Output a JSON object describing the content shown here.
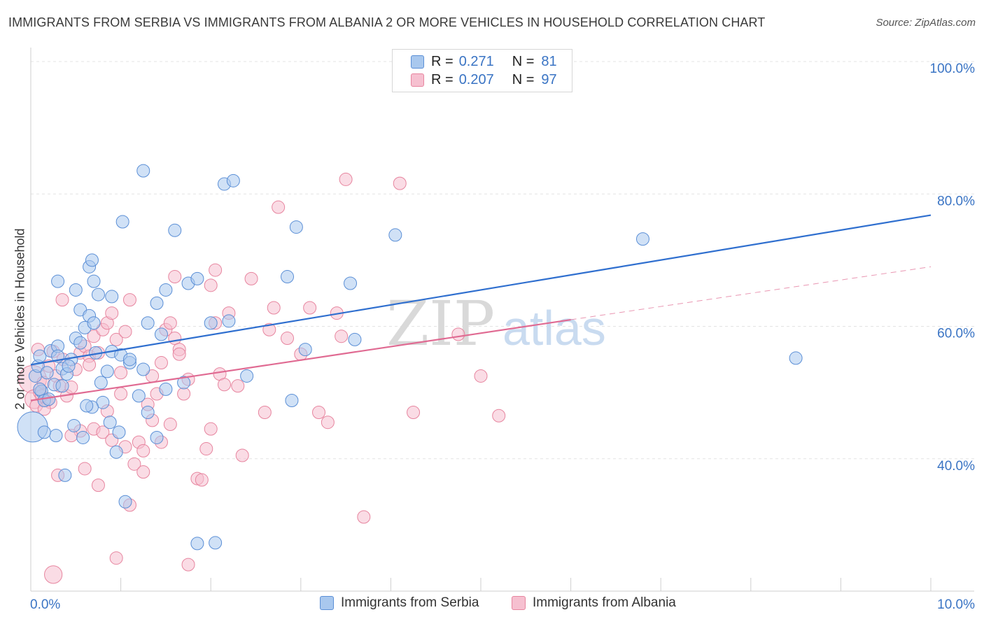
{
  "title": "IMMIGRANTS FROM SERBIA VS IMMIGRANTS FROM ALBANIA 2 OR MORE VEHICLES IN HOUSEHOLD CORRELATION CHART",
  "source": "Source: ZipAtlas.com",
  "watermark": {
    "part1": "ZIP",
    "part2": "atlas"
  },
  "legend": {
    "rows": [
      {
        "r_label": "R =",
        "r_value": "0.271",
        "n_label": "N =",
        "n_value": "81",
        "color": "#9dbfe9"
      },
      {
        "r_label": "R =",
        "r_value": "0.207",
        "n_label": "N =",
        "n_value": "97",
        "color": "#f4b6c8"
      }
    ]
  },
  "bottom_legend": [
    {
      "label": "Immigrants from Serbia",
      "color": "#9dbfe9"
    },
    {
      "label": "Immigrants from Albania",
      "color": "#f4b6c8"
    }
  ],
  "colors": {
    "serbia_fill": "#a9c8ee",
    "serbia_stroke": "#5b8fd6",
    "serbia_line": "#2f6fcf",
    "albania_fill": "#f6c0d0",
    "albania_stroke": "#e7859f",
    "albania_line": "#e06a92",
    "axis_label": "#3a74c4",
    "grid": "#e3e3e3"
  },
  "chart_data": {
    "type": "scatter",
    "title": "IMMIGRANTS FROM SERBIA VS IMMIGRANTS FROM ALBANIA 2 OR MORE VEHICLES IN HOUSEHOLD CORRELATION CHART",
    "xlabel": "",
    "ylabel": "2 or more Vehicles in Household",
    "xlim": [
      0,
      10
    ],
    "ylim": [
      20,
      100
    ],
    "x_tick_labels": [
      "0.0%",
      "10.0%"
    ],
    "y_ticks": [
      40,
      60,
      80,
      100
    ],
    "y_tick_labels": [
      "40.0%",
      "60.0%",
      "80.0%",
      "100.0%"
    ],
    "series": [
      {
        "name": "Immigrants from Serbia",
        "r": 0.271,
        "n": 81,
        "trend": {
          "x": [
            0,
            10
          ],
          "y": [
            54.2,
            76.8
          ],
          "dashed": false
        },
        "points": [
          {
            "x": 0.02,
            "y": 44.8,
            "s": 2.4
          },
          {
            "x": 0.05,
            "y": 52.5,
            "s": 1.0
          },
          {
            "x": 0.08,
            "y": 54.0,
            "s": 1.0
          },
          {
            "x": 0.1,
            "y": 55.5,
            "s": 1.0
          },
          {
            "x": 0.12,
            "y": 50.2,
            "s": 1.0
          },
          {
            "x": 0.15,
            "y": 48.8,
            "s": 1.0
          },
          {
            "x": 0.18,
            "y": 53.0,
            "s": 1.0
          },
          {
            "x": 0.22,
            "y": 56.3,
            "s": 1.0
          },
          {
            "x": 0.26,
            "y": 51.2,
            "s": 1.0
          },
          {
            "x": 0.3,
            "y": 57.0,
            "s": 1.0
          },
          {
            "x": 0.35,
            "y": 53.6,
            "s": 1.0
          },
          {
            "x": 0.4,
            "y": 52.8,
            "s": 1.0
          },
          {
            "x": 0.45,
            "y": 55.0,
            "s": 1.0
          },
          {
            "x": 0.5,
            "y": 58.2,
            "s": 1.0
          },
          {
            "x": 0.55,
            "y": 62.5,
            "s": 1.0
          },
          {
            "x": 0.6,
            "y": 59.8,
            "s": 1.0
          },
          {
            "x": 0.65,
            "y": 61.6,
            "s": 1.0
          },
          {
            "x": 0.7,
            "y": 60.5,
            "s": 1.0
          },
          {
            "x": 0.75,
            "y": 64.8,
            "s": 1.0
          },
          {
            "x": 0.8,
            "y": 48.5,
            "s": 1.0
          },
          {
            "x": 0.85,
            "y": 53.2,
            "s": 1.0
          },
          {
            "x": 0.9,
            "y": 56.2,
            "s": 1.0
          },
          {
            "x": 0.95,
            "y": 41.0,
            "s": 1.0
          },
          {
            "x": 1.0,
            "y": 55.7,
            "s": 1.0
          },
          {
            "x": 1.05,
            "y": 33.5,
            "s": 1.0
          },
          {
            "x": 0.28,
            "y": 43.5,
            "s": 1.0
          },
          {
            "x": 0.38,
            "y": 37.5,
            "s": 1.0
          },
          {
            "x": 0.48,
            "y": 45.0,
            "s": 1.0
          },
          {
            "x": 0.58,
            "y": 43.2,
            "s": 1.0
          },
          {
            "x": 0.68,
            "y": 47.8,
            "s": 1.0
          },
          {
            "x": 0.78,
            "y": 51.5,
            "s": 1.0
          },
          {
            "x": 0.88,
            "y": 45.5,
            "s": 1.0
          },
          {
            "x": 0.98,
            "y": 44.0,
            "s": 1.0
          },
          {
            "x": 0.3,
            "y": 66.8,
            "s": 1.0
          },
          {
            "x": 0.5,
            "y": 65.5,
            "s": 1.0
          },
          {
            "x": 0.7,
            "y": 66.8,
            "s": 1.0
          },
          {
            "x": 0.9,
            "y": 64.5,
            "s": 1.0
          },
          {
            "x": 0.65,
            "y": 69.0,
            "s": 1.0
          },
          {
            "x": 0.68,
            "y": 70.0,
            "s": 1.0
          },
          {
            "x": 1.02,
            "y": 75.8,
            "s": 1.0
          },
          {
            "x": 1.25,
            "y": 83.5,
            "s": 1.0
          },
          {
            "x": 1.5,
            "y": 65.5,
            "s": 1.0
          },
          {
            "x": 1.6,
            "y": 74.5,
            "s": 1.0
          },
          {
            "x": 1.75,
            "y": 66.5,
            "s": 1.0
          },
          {
            "x": 1.85,
            "y": 67.2,
            "s": 1.0
          },
          {
            "x": 2.0,
            "y": 60.5,
            "s": 1.0
          },
          {
            "x": 1.4,
            "y": 63.5,
            "s": 1.0
          },
          {
            "x": 1.45,
            "y": 58.8,
            "s": 1.0
          },
          {
            "x": 1.3,
            "y": 60.5,
            "s": 1.0
          },
          {
            "x": 1.1,
            "y": 54.5,
            "s": 1.0
          },
          {
            "x": 1.2,
            "y": 49.5,
            "s": 1.0
          },
          {
            "x": 1.3,
            "y": 47.0,
            "s": 1.0
          },
          {
            "x": 1.4,
            "y": 43.2,
            "s": 1.0
          },
          {
            "x": 1.5,
            "y": 50.5,
            "s": 1.0
          },
          {
            "x": 1.7,
            "y": 51.5,
            "s": 1.0
          },
          {
            "x": 2.2,
            "y": 60.8,
            "s": 1.0
          },
          {
            "x": 2.4,
            "y": 52.5,
            "s": 1.0
          },
          {
            "x": 2.85,
            "y": 67.5,
            "s": 1.0
          },
          {
            "x": 2.95,
            "y": 75.0,
            "s": 1.0
          },
          {
            "x": 3.05,
            "y": 56.5,
            "s": 1.0
          },
          {
            "x": 2.9,
            "y": 48.8,
            "s": 1.0
          },
          {
            "x": 3.55,
            "y": 66.5,
            "s": 1.0
          },
          {
            "x": 3.6,
            "y": 58.0,
            "s": 1.0
          },
          {
            "x": 4.05,
            "y": 73.8,
            "s": 1.0
          },
          {
            "x": 2.15,
            "y": 81.5,
            "s": 1.0
          },
          {
            "x": 2.25,
            "y": 82.0,
            "s": 1.0
          },
          {
            "x": 1.85,
            "y": 27.2,
            "s": 1.0
          },
          {
            "x": 2.05,
            "y": 27.3,
            "s": 1.0
          },
          {
            "x": 6.8,
            "y": 73.2,
            "s": 1.0
          },
          {
            "x": 8.5,
            "y": 55.2,
            "s": 1.0
          },
          {
            "x": 1.1,
            "y": 55.0,
            "s": 1.0
          },
          {
            "x": 0.15,
            "y": 44.0,
            "s": 1.0
          },
          {
            "x": 0.2,
            "y": 49.0,
            "s": 1.0
          },
          {
            "x": 0.3,
            "y": 55.5,
            "s": 1.0
          },
          {
            "x": 0.42,
            "y": 54.0,
            "s": 1.0
          },
          {
            "x": 0.55,
            "y": 57.5,
            "s": 1.0
          },
          {
            "x": 0.62,
            "y": 48.0,
            "s": 1.0
          },
          {
            "x": 0.72,
            "y": 56.0,
            "s": 1.0
          },
          {
            "x": 0.1,
            "y": 50.5,
            "s": 1.0
          },
          {
            "x": 0.35,
            "y": 51.0,
            "s": 1.0
          },
          {
            "x": 1.25,
            "y": 53.5,
            "s": 1.0
          }
        ]
      },
      {
        "name": "Immigrants from Albania",
        "r": 0.207,
        "n": 97,
        "trend": {
          "x": [
            0,
            6,
            10
          ],
          "y": [
            48.8,
            61.0,
            69.0
          ],
          "solid_until": 6
        },
        "points": [
          {
            "x": 0.02,
            "y": 52.0,
            "s": 2.2
          },
          {
            "x": 0.04,
            "y": 49.0,
            "s": 1.5
          },
          {
            "x": 0.06,
            "y": 48.0,
            "s": 1.0
          },
          {
            "x": 0.1,
            "y": 50.0,
            "s": 1.0
          },
          {
            "x": 0.14,
            "y": 51.5,
            "s": 1.0
          },
          {
            "x": 0.18,
            "y": 48.8,
            "s": 1.0
          },
          {
            "x": 0.22,
            "y": 48.5,
            "s": 1.0
          },
          {
            "x": 0.28,
            "y": 52.5,
            "s": 1.0
          },
          {
            "x": 0.32,
            "y": 51.0,
            "s": 1.0
          },
          {
            "x": 0.36,
            "y": 55.0,
            "s": 1.0
          },
          {
            "x": 0.4,
            "y": 49.5,
            "s": 1.0
          },
          {
            "x": 0.45,
            "y": 50.8,
            "s": 1.0
          },
          {
            "x": 0.5,
            "y": 53.5,
            "s": 1.0
          },
          {
            "x": 0.55,
            "y": 56.0,
            "s": 1.0
          },
          {
            "x": 0.6,
            "y": 57.0,
            "s": 1.0
          },
          {
            "x": 0.65,
            "y": 55.5,
            "s": 1.0
          },
          {
            "x": 0.7,
            "y": 58.5,
            "s": 1.0
          },
          {
            "x": 0.75,
            "y": 56.0,
            "s": 1.0
          },
          {
            "x": 0.8,
            "y": 59.5,
            "s": 1.0
          },
          {
            "x": 0.85,
            "y": 60.5,
            "s": 1.0
          },
          {
            "x": 0.9,
            "y": 62.0,
            "s": 1.0
          },
          {
            "x": 0.95,
            "y": 58.0,
            "s": 1.0
          },
          {
            "x": 1.0,
            "y": 53.0,
            "s": 1.0
          },
          {
            "x": 1.05,
            "y": 59.2,
            "s": 1.0
          },
          {
            "x": 1.1,
            "y": 64.0,
            "s": 1.0
          },
          {
            "x": 0.35,
            "y": 64.0,
            "s": 1.0
          },
          {
            "x": 0.3,
            "y": 37.5,
            "s": 1.0
          },
          {
            "x": 0.6,
            "y": 38.5,
            "s": 1.0
          },
          {
            "x": 0.7,
            "y": 44.5,
            "s": 1.0
          },
          {
            "x": 0.75,
            "y": 36.0,
            "s": 1.0
          },
          {
            "x": 0.8,
            "y": 44.0,
            "s": 1.0
          },
          {
            "x": 0.9,
            "y": 42.8,
            "s": 1.0
          },
          {
            "x": 1.0,
            "y": 49.8,
            "s": 1.0
          },
          {
            "x": 1.05,
            "y": 41.8,
            "s": 1.0
          },
          {
            "x": 1.1,
            "y": 33.0,
            "s": 1.0
          },
          {
            "x": 1.15,
            "y": 39.2,
            "s": 1.0
          },
          {
            "x": 1.2,
            "y": 42.5,
            "s": 1.0
          },
          {
            "x": 1.25,
            "y": 41.2,
            "s": 1.0
          },
          {
            "x": 1.3,
            "y": 48.2,
            "s": 1.0
          },
          {
            "x": 1.35,
            "y": 45.8,
            "s": 1.0
          },
          {
            "x": 1.4,
            "y": 49.8,
            "s": 1.0
          },
          {
            "x": 1.45,
            "y": 42.5,
            "s": 1.0
          },
          {
            "x": 1.5,
            "y": 59.5,
            "s": 1.0
          },
          {
            "x": 1.55,
            "y": 60.5,
            "s": 1.0
          },
          {
            "x": 1.6,
            "y": 58.2,
            "s": 1.0
          },
          {
            "x": 1.65,
            "y": 56.5,
            "s": 1.0
          },
          {
            "x": 1.7,
            "y": 49.8,
            "s": 1.0
          },
          {
            "x": 1.75,
            "y": 52.0,
            "s": 1.0
          },
          {
            "x": 1.85,
            "y": 37.0,
            "s": 1.0
          },
          {
            "x": 1.9,
            "y": 36.8,
            "s": 1.0
          },
          {
            "x": 1.95,
            "y": 41.5,
            "s": 1.0
          },
          {
            "x": 2.0,
            "y": 44.5,
            "s": 1.0
          },
          {
            "x": 2.05,
            "y": 60.5,
            "s": 1.0
          },
          {
            "x": 2.1,
            "y": 52.8,
            "s": 1.0
          },
          {
            "x": 2.15,
            "y": 51.2,
            "s": 1.0
          },
          {
            "x": 2.2,
            "y": 62.0,
            "s": 1.0
          },
          {
            "x": 2.3,
            "y": 51.0,
            "s": 1.0
          },
          {
            "x": 2.35,
            "y": 40.5,
            "s": 1.0
          },
          {
            "x": 2.45,
            "y": 67.2,
            "s": 1.0
          },
          {
            "x": 2.6,
            "y": 47.0,
            "s": 1.0
          },
          {
            "x": 2.65,
            "y": 59.5,
            "s": 1.0
          },
          {
            "x": 2.7,
            "y": 62.8,
            "s": 1.0
          },
          {
            "x": 2.75,
            "y": 78.0,
            "s": 1.0
          },
          {
            "x": 2.85,
            "y": 58.2,
            "s": 1.0
          },
          {
            "x": 3.0,
            "y": 55.8,
            "s": 1.0
          },
          {
            "x": 3.1,
            "y": 62.8,
            "s": 1.0
          },
          {
            "x": 3.2,
            "y": 47.0,
            "s": 1.0
          },
          {
            "x": 3.3,
            "y": 45.5,
            "s": 1.0
          },
          {
            "x": 3.4,
            "y": 62.0,
            "s": 1.0
          },
          {
            "x": 3.45,
            "y": 58.5,
            "s": 1.0
          },
          {
            "x": 3.5,
            "y": 82.2,
            "s": 1.0
          },
          {
            "x": 4.1,
            "y": 81.6,
            "s": 1.0
          },
          {
            "x": 3.7,
            "y": 31.2,
            "s": 1.0
          },
          {
            "x": 4.25,
            "y": 47.0,
            "s": 1.0
          },
          {
            "x": 4.75,
            "y": 58.8,
            "s": 1.0
          },
          {
            "x": 5.0,
            "y": 52.5,
            "s": 1.0
          },
          {
            "x": 5.2,
            "y": 46.5,
            "s": 1.0
          },
          {
            "x": 0.25,
            "y": 22.5,
            "s": 1.4
          },
          {
            "x": 0.95,
            "y": 25.0,
            "s": 1.0
          },
          {
            "x": 1.75,
            "y": 24.0,
            "s": 1.0
          },
          {
            "x": 1.6,
            "y": 67.5,
            "s": 1.0
          },
          {
            "x": 2.0,
            "y": 66.2,
            "s": 1.0
          },
          {
            "x": 2.05,
            "y": 68.5,
            "s": 1.0
          },
          {
            "x": 1.25,
            "y": 38.0,
            "s": 1.0
          },
          {
            "x": 1.35,
            "y": 52.5,
            "s": 1.0
          },
          {
            "x": 1.45,
            "y": 54.5,
            "s": 1.0
          },
          {
            "x": 1.55,
            "y": 45.2,
            "s": 1.0
          },
          {
            "x": 1.65,
            "y": 55.8,
            "s": 1.0
          },
          {
            "x": 0.85,
            "y": 47.2,
            "s": 1.0
          },
          {
            "x": 0.65,
            "y": 54.2,
            "s": 1.0
          },
          {
            "x": 0.55,
            "y": 44.2,
            "s": 1.0
          },
          {
            "x": 0.45,
            "y": 43.5,
            "s": 1.0
          },
          {
            "x": 0.25,
            "y": 56.2,
            "s": 1.0
          },
          {
            "x": 0.2,
            "y": 54.0,
            "s": 1.0
          },
          {
            "x": 0.12,
            "y": 49.5,
            "s": 1.0
          },
          {
            "x": 0.08,
            "y": 56.5,
            "s": 1.0
          },
          {
            "x": 0.15,
            "y": 47.5,
            "s": 1.0
          }
        ]
      }
    ]
  }
}
